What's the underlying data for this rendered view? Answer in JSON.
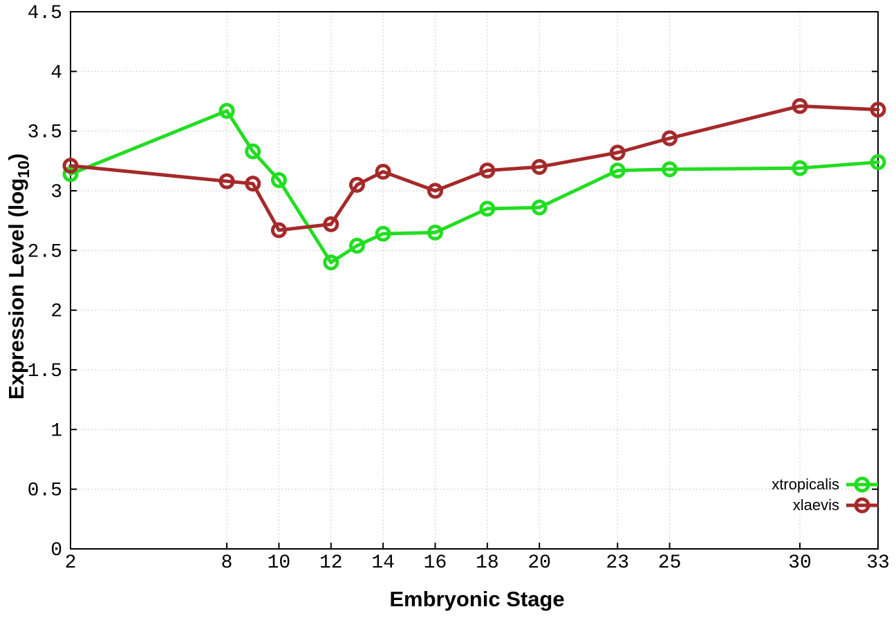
{
  "chart_data": {
    "type": "line",
    "title": "",
    "xlabel": "Embryonic Stage",
    "ylabel": {
      "prefix": "Expression Level (log",
      "sub": "10",
      "suffix": ")"
    },
    "xlim": [
      2,
      33
    ],
    "ylim": [
      0,
      4.5
    ],
    "grid": true,
    "legend_position": "inside-bottom-right",
    "x": [
      2,
      8,
      9,
      10,
      12,
      13,
      14,
      16,
      18,
      20,
      23,
      25,
      30,
      33
    ],
    "x_ticks": [
      2,
      8,
      10,
      12,
      14,
      16,
      18,
      20,
      23,
      25,
      30,
      33
    ],
    "x_tick_labels": [
      "2",
      "8",
      "10",
      "12",
      "14",
      "16",
      "18",
      "20",
      "23",
      "25",
      "30",
      "33"
    ],
    "y_ticks": [
      0,
      0.5,
      1,
      1.5,
      2,
      2.5,
      3,
      3.5,
      4,
      4.5
    ],
    "y_tick_labels": [
      "0",
      "0.5",
      "1",
      "1.5",
      "2",
      "2.5",
      "3",
      "3.5",
      "4",
      "4.5"
    ],
    "series": [
      {
        "name": "xtropicalis",
        "color": "#22dd22",
        "values": [
          3.14,
          3.67,
          3.33,
          3.09,
          2.4,
          2.54,
          2.64,
          2.65,
          2.85,
          2.86,
          3.17,
          3.18,
          3.19,
          3.24
        ]
      },
      {
        "name": "xlaevis",
        "color": "#a52a2a",
        "values": [
          3.21,
          3.08,
          3.06,
          2.67,
          2.72,
          3.05,
          3.16,
          3.0,
          3.17,
          3.2,
          3.32,
          3.44,
          3.71,
          3.68
        ]
      }
    ]
  },
  "colors": {
    "background": "#ffffff",
    "axis_border": "#000000",
    "grid": "#bbbbbb",
    "text": "#000000"
  }
}
